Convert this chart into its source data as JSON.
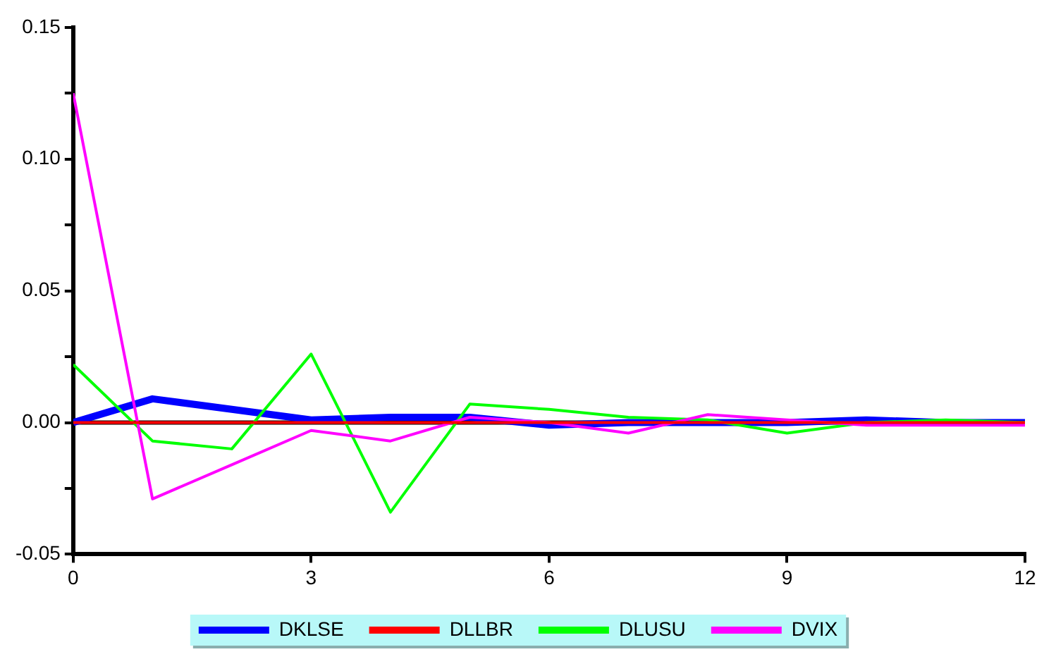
{
  "chart_data": {
    "type": "line",
    "x": [
      0,
      1,
      2,
      3,
      4,
      5,
      6,
      7,
      8,
      9,
      10,
      11,
      12
    ],
    "series": [
      {
        "name": "DKLSE",
        "color": "#0000ff",
        "values": [
          0,
          0.009,
          0.005,
          0.001,
          0.002,
          0.002,
          -0.001,
          0,
          0,
          0,
          0.001,
          0,
          0
        ]
      },
      {
        "name": "DLLBR",
        "color": "#ff0000",
        "values": [
          0,
          0,
          0,
          0,
          0,
          0,
          0,
          0,
          0,
          0,
          0,
          0,
          0
        ]
      },
      {
        "name": "DLUSU",
        "color": "#00ff00",
        "values": [
          0.022,
          -0.007,
          -0.01,
          0.026,
          -0.034,
          0.007,
          0.005,
          0.002,
          0.001,
          -0.004,
          0,
          0.001,
          0
        ]
      },
      {
        "name": "DVIX",
        "color": "#ff00ff",
        "values": [
          0.125,
          -0.029,
          -0.016,
          -0.003,
          -0.007,
          0.002,
          0,
          -0.004,
          0.003,
          0.001,
          -0.001,
          -0.001,
          -0.001
        ]
      }
    ],
    "xlim": [
      0,
      12
    ],
    "xticks": [
      0,
      3,
      6,
      9,
      12
    ],
    "ylim": [
      -0.05,
      0.15
    ],
    "yticks": [
      {
        "value": -0.05,
        "label": "-0.05"
      },
      {
        "value": -0.025,
        "label": null
      },
      {
        "value": 0,
        "label": "0.00"
      },
      {
        "value": 0.025,
        "label": null
      },
      {
        "value": 0.05,
        "label": "0.05"
      },
      {
        "value": 0.075,
        "label": null
      },
      {
        "value": 0.1,
        "label": "0.10"
      },
      {
        "value": 0.125,
        "label": null
      },
      {
        "value": 0.15,
        "label": "0.15"
      }
    ],
    "ref_lines": [
      {
        "axis": "y",
        "value": 0,
        "color": "#000000"
      }
    ],
    "grid": false,
    "legend": "bottom",
    "marker": "none",
    "line_style": "solid"
  }
}
